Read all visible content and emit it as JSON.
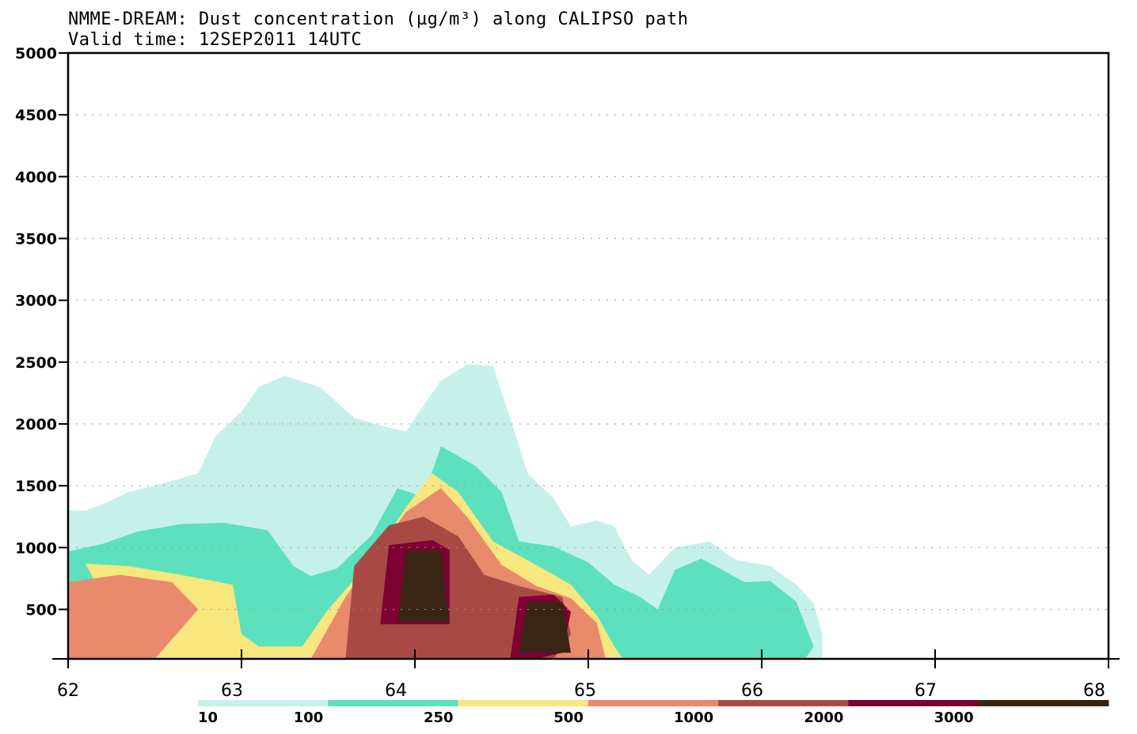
{
  "chart_data": {
    "type": "area",
    "title": "NMME-DREAM: Dust concentration (µg/m³) along CALIPSO path",
    "subtitle": "Valid time: 12SEP2011 14UTC",
    "xlabel": "",
    "ylabel": "",
    "xlim": [
      62,
      68
    ],
    "ylim": [
      100,
      5000
    ],
    "x_ticks": [
      "62",
      "63",
      "64",
      "65",
      "66",
      "67",
      "68"
    ],
    "y_ticks": [
      "500",
      "1000",
      "1500",
      "2000",
      "2500",
      "3000",
      "3500",
      "4000",
      "4500",
      "5000"
    ],
    "grid": "dotted horizontal",
    "legend": {
      "placement": "bottom",
      "levels": [
        "10",
        "100",
        "250",
        "500",
        "1000",
        "2000",
        "3000"
      ],
      "colors": [
        "#c6f1eb",
        "#5ce0bd",
        "#f8e67e",
        "#e98a6c",
        "#a84a43",
        "#7d0033",
        "#3a2414"
      ]
    },
    "series": [
      {
        "level": "10",
        "color": "#c6f1eb",
        "points": [
          [
            62,
            100
          ],
          [
            62,
            1300
          ],
          [
            62.1,
            1300
          ],
          [
            62.2,
            1350
          ],
          [
            62.35,
            1450
          ],
          [
            62.55,
            1520
          ],
          [
            62.75,
            1600
          ],
          [
            62.85,
            1900
          ],
          [
            63,
            2100
          ],
          [
            63.1,
            2300
          ],
          [
            63.25,
            2390
          ],
          [
            63.45,
            2300
          ],
          [
            63.65,
            2050
          ],
          [
            63.85,
            1970
          ],
          [
            63.95,
            1940
          ],
          [
            64.05,
            2150
          ],
          [
            64.15,
            2350
          ],
          [
            64.3,
            2480
          ],
          [
            64.45,
            2470
          ],
          [
            64.55,
            2050
          ],
          [
            64.65,
            1600
          ],
          [
            64.8,
            1400
          ],
          [
            64.9,
            1170
          ],
          [
            65.05,
            1220
          ],
          [
            65.15,
            1170
          ],
          [
            65.25,
            900
          ],
          [
            65.35,
            780
          ],
          [
            65.5,
            1000
          ],
          [
            65.7,
            1050
          ],
          [
            65.85,
            900
          ],
          [
            66.05,
            850
          ],
          [
            66.2,
            700
          ],
          [
            66.3,
            550
          ],
          [
            66.35,
            300
          ],
          [
            66.35,
            100
          ]
        ]
      },
      {
        "level": "100",
        "color": "#5ce0bd",
        "points": [
          [
            62,
            100
          ],
          [
            62,
            970
          ],
          [
            62.2,
            1030
          ],
          [
            62.4,
            1130
          ],
          [
            62.65,
            1190
          ],
          [
            62.9,
            1200
          ],
          [
            63.15,
            1140
          ],
          [
            63.3,
            850
          ],
          [
            63.4,
            770
          ],
          [
            63.55,
            830
          ],
          [
            63.75,
            1100
          ],
          [
            63.9,
            1480
          ],
          [
            64.05,
            1410
          ],
          [
            64.15,
            1820
          ],
          [
            64.35,
            1660
          ],
          [
            64.5,
            1450
          ],
          [
            64.6,
            1050
          ],
          [
            64.8,
            1010
          ],
          [
            65.0,
            880
          ],
          [
            65.15,
            700
          ],
          [
            65.3,
            600
          ],
          [
            65.4,
            500
          ],
          [
            65.5,
            820
          ],
          [
            65.65,
            910
          ],
          [
            65.8,
            800
          ],
          [
            65.9,
            720
          ],
          [
            66.05,
            730
          ],
          [
            66.2,
            560
          ],
          [
            66.3,
            200
          ],
          [
            66.25,
            100
          ]
        ]
      },
      {
        "level": "250",
        "color": "#f8e67e",
        "points": [
          [
            62.4,
            100
          ],
          [
            62.1,
            870
          ],
          [
            62.35,
            850
          ],
          [
            62.65,
            780
          ],
          [
            62.95,
            700
          ],
          [
            63.0,
            300
          ],
          [
            63.1,
            200
          ],
          [
            63.35,
            200
          ],
          [
            63.5,
            500
          ],
          [
            63.75,
            900
          ],
          [
            63.95,
            1330
          ],
          [
            64.1,
            1600
          ],
          [
            64.25,
            1450
          ],
          [
            64.45,
            1050
          ],
          [
            64.7,
            860
          ],
          [
            64.9,
            700
          ],
          [
            65.05,
            450
          ],
          [
            65.15,
            200
          ],
          [
            65.2,
            100
          ],
          [
            65.05,
            100
          ]
        ]
      },
      {
        "level": "500",
        "color": "#e98a6c",
        "points": [
          [
            62,
            100
          ],
          [
            62,
            720
          ],
          [
            62.3,
            780
          ],
          [
            62.6,
            720
          ],
          [
            62.75,
            500
          ],
          [
            62.5,
            100
          ]
        ]
      },
      {
        "level": "500b",
        "color": "#e98a6c",
        "points": [
          [
            63.4,
            100
          ],
          [
            63.6,
            600
          ],
          [
            63.8,
            1000
          ],
          [
            63.95,
            1290
          ],
          [
            64.15,
            1480
          ],
          [
            64.3,
            1250
          ],
          [
            64.5,
            860
          ],
          [
            64.7,
            690
          ],
          [
            64.9,
            590
          ],
          [
            65.05,
            390
          ],
          [
            65.1,
            100
          ]
        ]
      },
      {
        "level": "1000",
        "color": "#a84a43",
        "points": [
          [
            63.6,
            100
          ],
          [
            63.65,
            850
          ],
          [
            63.85,
            1180
          ],
          [
            64.05,
            1250
          ],
          [
            64.25,
            1090
          ],
          [
            64.4,
            780
          ],
          [
            64.6,
            690
          ],
          [
            64.85,
            600
          ],
          [
            64.9,
            300
          ],
          [
            64.8,
            100
          ]
        ]
      },
      {
        "level": "2000",
        "color": "#7d0033",
        "points": [
          [
            63.8,
            380
          ],
          [
            63.85,
            1020
          ],
          [
            64.1,
            1060
          ],
          [
            64.2,
            980
          ],
          [
            64.2,
            380
          ]
        ]
      },
      {
        "level": "2000b",
        "color": "#7d0033",
        "points": [
          [
            64.55,
            100
          ],
          [
            64.6,
            600
          ],
          [
            64.8,
            620
          ],
          [
            64.9,
            480
          ],
          [
            64.85,
            150
          ],
          [
            64.7,
            100
          ]
        ]
      },
      {
        "level": "3000",
        "color": "#3a2414",
        "points": [
          [
            63.9,
            400
          ],
          [
            63.95,
            980
          ],
          [
            64.15,
            980
          ],
          [
            64.2,
            400
          ]
        ]
      },
      {
        "level": "3000b",
        "color": "#3a2414",
        "points": [
          [
            64.6,
            150
          ],
          [
            64.65,
            560
          ],
          [
            64.85,
            560
          ],
          [
            64.9,
            150
          ]
        ]
      }
    ]
  }
}
